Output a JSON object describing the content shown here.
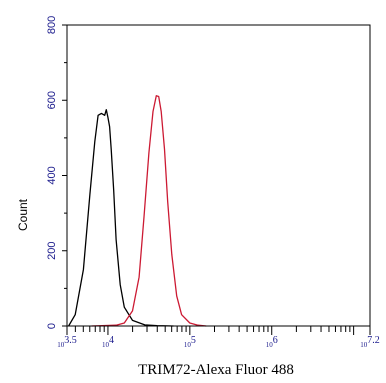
{
  "chart_data": {
    "type": "line",
    "title": "",
    "xlabel": "TRIM72-Alexa Fluor 488",
    "ylabel": "Count",
    "x_scale": "log",
    "xlim": [
      3.5,
      7.2
    ],
    "ylim": [
      0,
      800
    ],
    "x_tick_labels": [
      {
        "exp": "3.5",
        "value": 3.5
      },
      {
        "exp": "4",
        "value": 4
      },
      {
        "exp": "5",
        "value": 5
      },
      {
        "exp": "6",
        "value": 6
      },
      {
        "exp": "7.2",
        "value": 7.2
      }
    ],
    "y_ticks": [
      0,
      200,
      400,
      600,
      800
    ],
    "grid": false,
    "series": [
      {
        "color": "#000000",
        "x": [
          3.52,
          3.6,
          3.7,
          3.78,
          3.84,
          3.88,
          3.92,
          3.96,
          3.98,
          4.0,
          4.02,
          4.04,
          4.07,
          4.1,
          4.15,
          4.2,
          4.3,
          4.45,
          4.6,
          4.8
        ],
        "y": [
          0,
          30,
          150,
          350,
          490,
          560,
          565,
          560,
          575,
          555,
          530,
          470,
          360,
          230,
          110,
          50,
          15,
          3,
          1,
          0
        ]
      },
      {
        "color": "#cc1a33",
        "x": [
          3.8,
          4.1,
          4.2,
          4.3,
          4.38,
          4.44,
          4.5,
          4.55,
          4.59,
          4.62,
          4.65,
          4.69,
          4.73,
          4.78,
          4.84,
          4.9,
          5.0,
          5.1,
          5.2
        ],
        "y": [
          0,
          2,
          8,
          40,
          130,
          290,
          460,
          570,
          612,
          610,
          570,
          470,
          330,
          190,
          80,
          30,
          8,
          2,
          0
        ]
      }
    ]
  }
}
